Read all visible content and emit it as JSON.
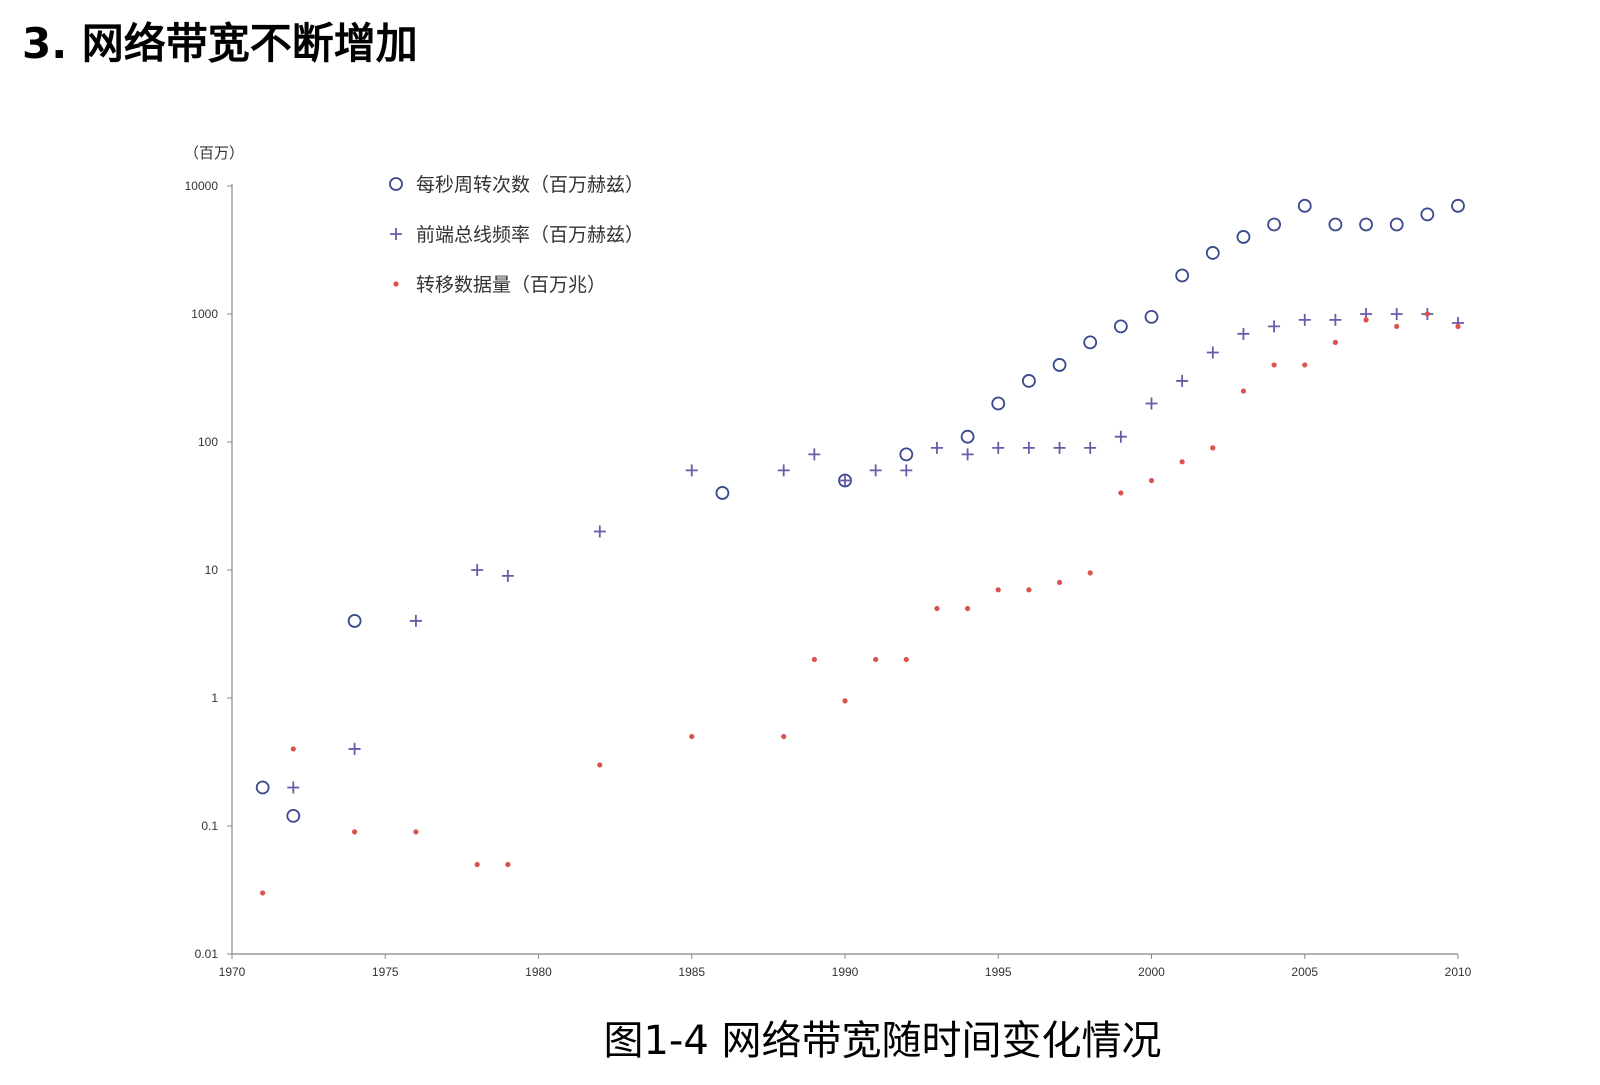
{
  "heading": "3. 网络带宽不断增加",
  "caption": "图1-4 网络带宽随时间变化情况",
  "chart_data": {
    "type": "scatter",
    "title": "",
    "ylabel": "（百万）",
    "xlabel": "",
    "x_scale": "linear",
    "y_scale": "log",
    "xlim": [
      1970,
      2010
    ],
    "ylim": [
      0.01,
      10000
    ],
    "x_ticks": [
      "1970",
      "1975",
      "1980",
      "1985",
      "1990",
      "1995",
      "2000",
      "2005",
      "2010"
    ],
    "y_ticks": [
      "0.01",
      "0.1",
      "1",
      "10",
      "100",
      "1000",
      "10000"
    ],
    "grid": false,
    "legend_position": "top-left",
    "series": [
      {
        "name": "每秒周转次数（百万赫兹）",
        "marker": "circle",
        "color": "#3b4a8c",
        "points": [
          [
            1971,
            0.2
          ],
          [
            1972,
            0.12
          ],
          [
            1974,
            4
          ],
          [
            1986,
            40
          ],
          [
            1990,
            50
          ],
          [
            1992,
            80
          ],
          [
            1994,
            110
          ],
          [
            1995,
            200
          ],
          [
            1996,
            300
          ],
          [
            1997,
            400
          ],
          [
            1998,
            600
          ],
          [
            1999,
            800
          ],
          [
            2000,
            950
          ],
          [
            2001,
            2000
          ],
          [
            2002,
            3000
          ],
          [
            2003,
            4000
          ],
          [
            2004,
            5000
          ],
          [
            2005,
            7000
          ],
          [
            2006,
            5000
          ],
          [
            2007,
            5000
          ],
          [
            2008,
            5000
          ],
          [
            2009,
            6000
          ],
          [
            2010,
            7000
          ]
        ]
      },
      {
        "name": "前端总线频率（百万赫兹）",
        "marker": "plus",
        "color": "#6a5aa8",
        "points": [
          [
            1972,
            0.2
          ],
          [
            1974,
            0.4
          ],
          [
            1976,
            4
          ],
          [
            1978,
            10
          ],
          [
            1979,
            9
          ],
          [
            1982,
            20
          ],
          [
            1985,
            60
          ],
          [
            1988,
            60
          ],
          [
            1989,
            80
          ],
          [
            1990,
            50
          ],
          [
            1991,
            60
          ],
          [
            1992,
            60
          ],
          [
            1993,
            90
          ],
          [
            1994,
            80
          ],
          [
            1995,
            90
          ],
          [
            1996,
            90
          ],
          [
            1997,
            90
          ],
          [
            1998,
            90
          ],
          [
            1999,
            110
          ],
          [
            2000,
            200
          ],
          [
            2001,
            300
          ],
          [
            2002,
            500
          ],
          [
            2003,
            700
          ],
          [
            2004,
            800
          ],
          [
            2005,
            900
          ],
          [
            2006,
            900
          ],
          [
            2007,
            1000
          ],
          [
            2008,
            1000
          ],
          [
            2009,
            1000
          ],
          [
            2010,
            850
          ]
        ]
      },
      {
        "name": "转移数据量（百万兆）",
        "marker": "dot",
        "color": "#d9534f",
        "points": [
          [
            1971,
            0.03
          ],
          [
            1972,
            0.4
          ],
          [
            1974,
            0.09
          ],
          [
            1976,
            0.09
          ],
          [
            1978,
            0.05
          ],
          [
            1979,
            0.05
          ],
          [
            1982,
            0.3
          ],
          [
            1985,
            0.5
          ],
          [
            1988,
            0.5
          ],
          [
            1989,
            2
          ],
          [
            1990,
            0.95
          ],
          [
            1991,
            2
          ],
          [
            1992,
            2
          ],
          [
            1993,
            5
          ],
          [
            1994,
            5
          ],
          [
            1995,
            7
          ],
          [
            1996,
            7
          ],
          [
            1997,
            8
          ],
          [
            1998,
            9.5
          ],
          [
            1999,
            40
          ],
          [
            2000,
            50
          ],
          [
            2001,
            70
          ],
          [
            2002,
            90
          ],
          [
            2003,
            250
          ],
          [
            2004,
            400
          ],
          [
            2005,
            400
          ],
          [
            2006,
            600
          ],
          [
            2007,
            900
          ],
          [
            2008,
            800
          ],
          [
            2009,
            1000
          ],
          [
            2010,
            800
          ]
        ]
      }
    ]
  }
}
